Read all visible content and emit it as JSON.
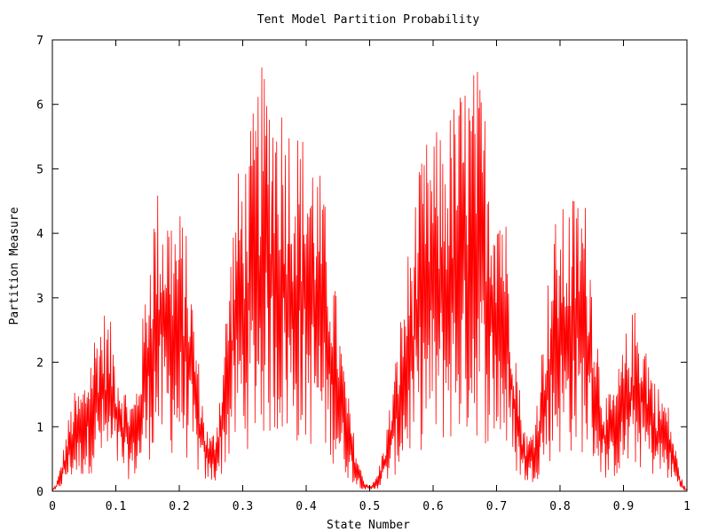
{
  "chart_data": {
    "type": "line",
    "title": "Tent Model Partition Probability",
    "xlabel": "State Number",
    "ylabel": "Partition Measure",
    "xlim": [
      0,
      1
    ],
    "ylim": [
      0,
      7
    ],
    "xticks": [
      "0",
      "0.1",
      "0.2",
      "0.3",
      "0.4",
      "0.5",
      "0.6",
      "0.7",
      "0.8",
      "0.9",
      "1"
    ],
    "yticks": [
      "0",
      "1",
      "2",
      "3",
      "4",
      "5",
      "6",
      "7"
    ],
    "grid": false,
    "legend": "none",
    "series": [
      {
        "color": "#ff0000",
        "envelope_peaks": [
          {
            "x": 0.0,
            "y": 0.05
          },
          {
            "x": 0.04,
            "y": 1.6
          },
          {
            "x": 0.08,
            "y": 2.85
          },
          {
            "x": 0.125,
            "y": 1.5
          },
          {
            "x": 0.167,
            "y": 4.75
          },
          {
            "x": 0.2,
            "y": 4.4
          },
          {
            "x": 0.25,
            "y": 0.9
          },
          {
            "x": 0.3,
            "y": 5.2
          },
          {
            "x": 0.333,
            "y": 6.62
          },
          {
            "x": 0.4,
            "y": 5.6
          },
          {
            "x": 0.5,
            "y": 0.1
          },
          {
            "x": 0.6,
            "y": 5.6
          },
          {
            "x": 0.667,
            "y": 6.62
          },
          {
            "x": 0.7,
            "y": 5.2
          },
          {
            "x": 0.75,
            "y": 0.9
          },
          {
            "x": 0.8,
            "y": 4.4
          },
          {
            "x": 0.833,
            "y": 4.75
          },
          {
            "x": 0.875,
            "y": 1.5
          },
          {
            "x": 0.92,
            "y": 2.85
          },
          {
            "x": 0.96,
            "y": 1.6
          },
          {
            "x": 1.0,
            "y": 0.05
          }
        ]
      }
    ]
  }
}
